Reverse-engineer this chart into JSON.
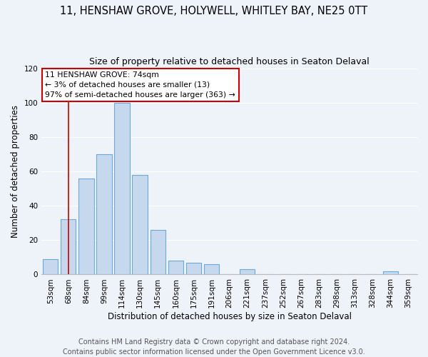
{
  "title": "11, HENSHAW GROVE, HOLYWELL, WHITLEY BAY, NE25 0TT",
  "subtitle": "Size of property relative to detached houses in Seaton Delaval",
  "xlabel": "Distribution of detached houses by size in Seaton Delaval",
  "ylabel": "Number of detached properties",
  "bar_labels": [
    "53sqm",
    "68sqm",
    "84sqm",
    "99sqm",
    "114sqm",
    "130sqm",
    "145sqm",
    "160sqm",
    "175sqm",
    "191sqm",
    "206sqm",
    "221sqm",
    "237sqm",
    "252sqm",
    "267sqm",
    "283sqm",
    "298sqm",
    "313sqm",
    "328sqm",
    "344sqm",
    "359sqm"
  ],
  "bar_values": [
    9,
    32,
    56,
    70,
    100,
    58,
    26,
    8,
    7,
    6,
    0,
    3,
    0,
    0,
    0,
    0,
    0,
    0,
    0,
    2,
    0
  ],
  "bar_color": "#c5d8ed",
  "bar_edge_color": "#6aaad4",
  "vline_x": 1,
  "vline_color": "#cc0000",
  "annotation_line1": "11 HENSHAW GROVE: 74sqm",
  "annotation_line2": "← 3% of detached houses are smaller (13)",
  "annotation_line3": "97% of semi-detached houses are larger (363) →",
  "ylim": [
    0,
    120
  ],
  "yticks": [
    0,
    20,
    40,
    60,
    80,
    100,
    120
  ],
  "footer_line1": "Contains HM Land Registry data © Crown copyright and database right 2024.",
  "footer_line2": "Contains public sector information licensed under the Open Government Licence v3.0.",
  "bg_color": "#eef2f9",
  "title_fontsize": 10.5,
  "subtitle_fontsize": 9,
  "axis_label_fontsize": 8.5,
  "tick_fontsize": 7.5,
  "footer_fontsize": 7
}
